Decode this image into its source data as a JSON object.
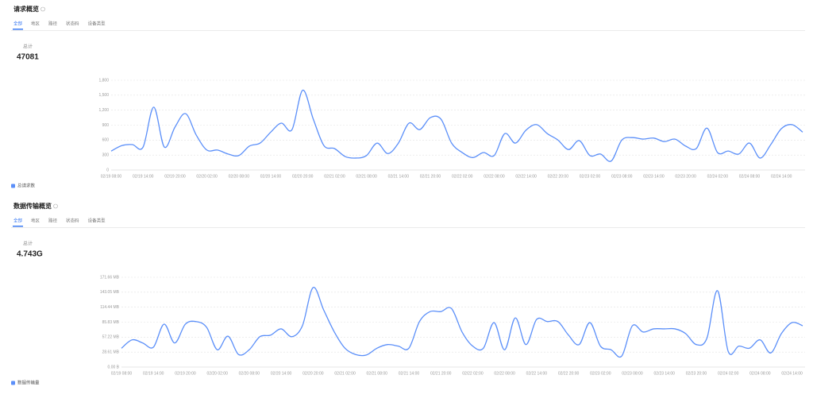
{
  "panels": [
    {
      "title": "请求概览",
      "tabs": [
        "全部",
        "地区",
        "路径",
        "状态码",
        "设备类型"
      ],
      "total_label": "总计",
      "total": "47081"
    },
    {
      "title": "数据传输概览",
      "tabs": [
        "全部",
        "地区",
        "路径",
        "状态码",
        "设备类型"
      ],
      "total_label": "总计",
      "total": "4.743G"
    }
  ],
  "chart_data": [
    {
      "type": "line",
      "grid": true,
      "categories": [
        "02/19 08:00",
        null,
        null,
        "02/19 14:00",
        null,
        null,
        "02/19 20:00",
        null,
        null,
        "02/20 02:00",
        null,
        null,
        "02/20 08:00",
        null,
        null,
        "02/20 14:00",
        null,
        null,
        "02/20 20:00",
        null,
        null,
        "02/21 02:00",
        null,
        null,
        "02/21 08:00",
        null,
        null,
        "02/21 14:00",
        null,
        null,
        "02/21 20:00",
        null,
        null,
        "02/22 02:00",
        null,
        null,
        "02/22 08:00",
        null,
        null,
        "02/22 14:00",
        null,
        null,
        "02/22 20:00",
        null,
        null,
        "02/23 02:00",
        null,
        null,
        "02/23 08:00",
        null,
        null,
        "02/23 14:00",
        null,
        null,
        "02/23 20:00",
        null,
        null,
        "02/24 02:00",
        null,
        null,
        "02/24 08:00",
        null,
        null,
        "02/24 14:00",
        null,
        null
      ],
      "ylim": [
        0,
        1800
      ],
      "yticks": [
        0,
        300,
        600,
        900,
        {
          "value": 1200,
          "label": "1,200"
        },
        {
          "value": 1500,
          "label": "1,500"
        },
        {
          "value": 1800,
          "label": "1,800"
        }
      ],
      "series": [
        {
          "name": "总请求数",
          "color": "#5b8ff9",
          "values": [
            380,
            490,
            510,
            460,
            1260,
            460,
            860,
            1130,
            700,
            400,
            400,
            320,
            290,
            480,
            540,
            760,
            940,
            810,
            1600,
            1020,
            490,
            430,
            270,
            240,
            290,
            540,
            330,
            540,
            940,
            810,
            1050,
            1020,
            540,
            350,
            250,
            350,
            290,
            730,
            540,
            800,
            910,
            730,
            600,
            410,
            590,
            290,
            320,
            180,
            600,
            650,
            620,
            640,
            570,
            620,
            480,
            430,
            840,
            350,
            380,
            320,
            540,
            240,
            510,
            830,
            910,
            760
          ]
        }
      ]
    },
    {
      "type": "line",
      "grid": true,
      "categories": [
        "02/19 08:00",
        null,
        null,
        "02/19 14:00",
        null,
        null,
        "02/19 20:00",
        null,
        null,
        "02/20 02:00",
        null,
        null,
        "02/20 08:00",
        null,
        null,
        "02/20 14:00",
        null,
        null,
        "02/20 20:00",
        null,
        null,
        "02/21 02:00",
        null,
        null,
        "02/21 08:00",
        null,
        null,
        "02/21 14:00",
        null,
        null,
        "02/21 20:00",
        null,
        null,
        "02/22 02:00",
        null,
        null,
        "02/22 08:00",
        null,
        null,
        "02/22 14:00",
        null,
        null,
        "02/22 20:00",
        null,
        null,
        "02/23 02:00",
        null,
        null,
        "02/23 08:00",
        null,
        null,
        "02/23 14:00",
        null,
        null,
        "02/23 20:00",
        null,
        null,
        "02/24 02:00",
        null,
        null,
        "02/24 08:00",
        null,
        null,
        "02/24 14:00",
        null
      ],
      "ylim": [
        0,
        171.66
      ],
      "yticks": [
        {
          "value": 0,
          "label": "0.00 B"
        },
        {
          "value": 28.61,
          "label": "28.61 MB"
        },
        {
          "value": 57.22,
          "label": "57.22 MB"
        },
        {
          "value": 85.83,
          "label": "85.83 MB"
        },
        {
          "value": 114.44,
          "label": "114.44 MB"
        },
        {
          "value": 143.05,
          "label": "143.05 MB"
        },
        {
          "value": 171.66,
          "label": "171.66 MB"
        }
      ],
      "series": [
        {
          "name": "数据传输量",
          "color": "#5b8ff9",
          "values": [
            36,
            52,
            46,
            38,
            82,
            46,
            82,
            87,
            76,
            33,
            59,
            24,
            33,
            58,
            61,
            73,
            58,
            79,
            152,
            109,
            67,
            36,
            24,
            23,
            36,
            43,
            40,
            36,
            87,
            106,
            106,
            112,
            67,
            40,
            36,
            85,
            33,
            94,
            43,
            91,
            87,
            87,
            61,
            43,
            85,
            40,
            33,
            21,
            79,
            67,
            73,
            73,
            73,
            64,
            43,
            55,
            146,
            30,
            40,
            36,
            52,
            27,
            64,
            85,
            79
          ]
        }
      ]
    }
  ]
}
